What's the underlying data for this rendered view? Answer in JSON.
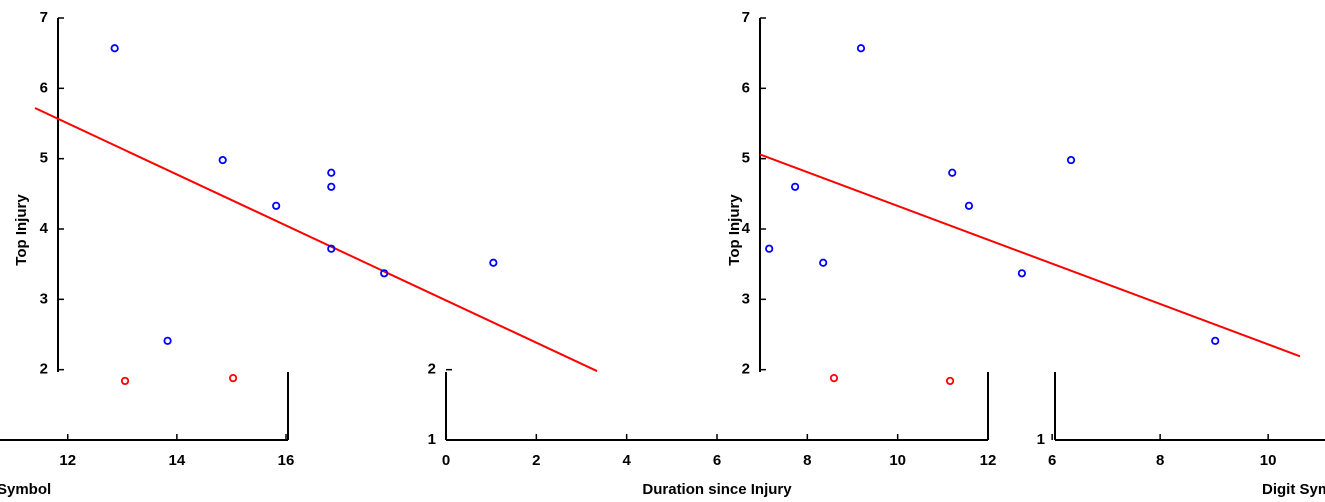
{
  "chart_data": [
    {
      "type": "scatter",
      "ylabel": "Top Injury",
      "xlabel": "Symbol",
      "xlim": [
        11.4,
        21.7
      ],
      "ylim": [
        1,
        7
      ],
      "xticks": [
        12,
        14,
        16
      ],
      "yticks": [
        2,
        3,
        4,
        5,
        6,
        7
      ],
      "series": [
        {
          "color": "#0000ff",
          "x": [
            12.86,
            13.83,
            14.84,
            15.82,
            16.83,
            16.83,
            16.83,
            17.8,
            19.8
          ],
          "values": [
            6.57,
            2.41,
            4.98,
            4.33,
            4.8,
            4.6,
            3.72,
            3.37,
            3.52
          ]
        },
        {
          "color": "#ff0000",
          "x": [
            13.05,
            15.03
          ],
          "values": [
            1.84,
            1.88
          ]
        }
      ],
      "fit": {
        "color": "#ff0000",
        "x": [
          11.4,
          21.7
        ],
        "values": [
          5.72,
          1.98
        ]
      }
    },
    {
      "type": "scatter",
      "xlabel": "Duration since Injury",
      "xlim": [
        0,
        12
      ],
      "ylim": [
        1,
        7
      ],
      "xticks": [
        0,
        2,
        4,
        6,
        8,
        10,
        12
      ],
      "yticks": [
        1,
        2
      ]
    },
    {
      "type": "scatter",
      "ylabel": "Top Injury",
      "xlabel": "Digit Symbol",
      "xlim": [
        0.59,
        10.59
      ],
      "ylim": [
        1,
        7
      ],
      "xticks": [
        6,
        8,
        10
      ],
      "yticks": [
        1,
        2,
        3,
        4,
        5,
        6,
        7
      ],
      "series": [
        {
          "color": "#0000ff",
          "x": [
            0.76,
            1.24,
            1.76,
            2.46,
            4.15,
            4.46,
            5.44,
            6.35,
            9.02
          ],
          "values": [
            3.72,
            4.6,
            3.52,
            6.57,
            4.8,
            4.33,
            3.37,
            4.98,
            2.41
          ]
        },
        {
          "color": "#ff0000",
          "x": [
            1.96,
            4.11
          ],
          "values": [
            1.88,
            1.84
          ]
        }
      ],
      "fit": {
        "color": "#ff0000",
        "x": [
          0.59,
          10.59
        ],
        "values": [
          5.06,
          2.19
        ]
      }
    }
  ]
}
